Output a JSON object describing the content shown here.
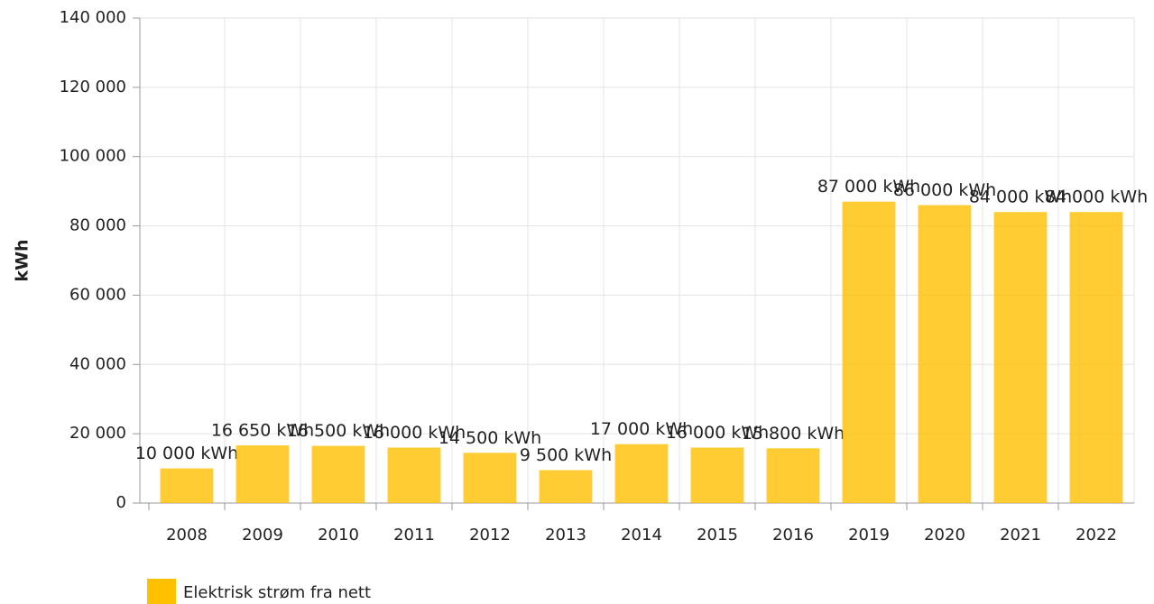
{
  "chart_data": {
    "type": "bar",
    "y_label": "kWh",
    "categories": [
      "2008",
      "2009",
      "2010",
      "2011",
      "2012",
      "2013",
      "2014",
      "2015",
      "2016",
      "2019",
      "2020",
      "2021",
      "2022"
    ],
    "series": [
      {
        "name": "Elektrisk strøm fra nett",
        "color": "#ffc000",
        "values": [
          10000,
          16650,
          16500,
          16000,
          14500,
          9500,
          17000,
          16000,
          15800,
          87000,
          86000,
          84000,
          84000
        ],
        "value_labels": [
          "10 000 kWh",
          "16 650 kWh",
          "16 500 kWh",
          "16 000 kWh",
          "14 500 kWh",
          "9 500 kWh",
          "17 000 kWh",
          "16 000 kWh",
          "15 800 kWh",
          "87 000 kWh",
          "86 000 kWh",
          "84 000 kWh",
          "84 000 kWh"
        ]
      }
    ],
    "ylim": [
      0,
      140000
    ],
    "yticks": [
      0,
      {
        "value": 20000,
        "label": "20 000"
      },
      {
        "value": 40000,
        "label": "40 000"
      },
      {
        "value": 60000,
        "label": "60 000"
      },
      {
        "value": 80000,
        "label": "80 000"
      },
      {
        "value": 100000,
        "label": "100 000"
      },
      {
        "value": 120000,
        "label": "120 000"
      },
      {
        "value": 140000,
        "label": "140 000"
      }
    ],
    "grid": true
  }
}
